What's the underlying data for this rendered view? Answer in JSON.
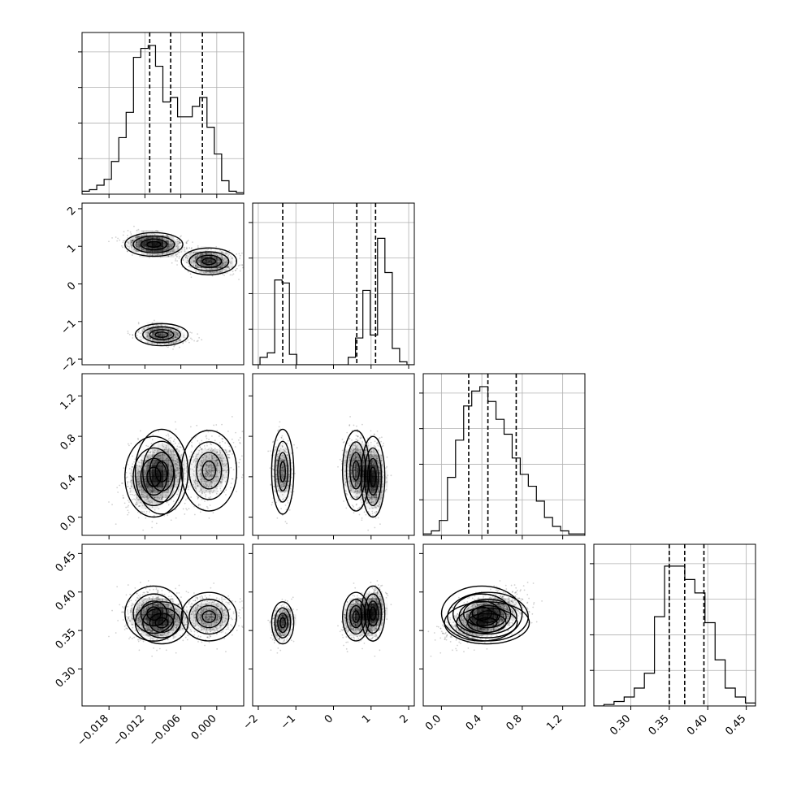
{
  "chart_data": {
    "type": "corner",
    "title": "",
    "grid": true,
    "parameters": [
      {
        "range": [
          -0.0225,
          0.0045
        ],
        "ticks": [
          -0.018,
          -0.012,
          -0.006,
          0.0
        ],
        "ticklabels": [
          "−0.018",
          "−0.012",
          "−0.006",
          "0.000"
        ],
        "quantiles": [
          -0.0112,
          -0.0077,
          -0.0024
        ],
        "hist": [
          0.02,
          0.03,
          0.06,
          0.1,
          0.22,
          0.38,
          0.55,
          0.92,
          0.98,
          1.0,
          0.86,
          0.62,
          0.65,
          0.52,
          0.52,
          0.59,
          0.65,
          0.45,
          0.27,
          0.09,
          0.02,
          0.01
        ]
      },
      {
        "range": [
          -2.15,
          2.15
        ],
        "ticks": [
          -2,
          -1,
          0,
          1,
          2
        ],
        "ticklabels": [
          "−2",
          "−1",
          "0",
          "1",
          "2"
        ],
        "quantiles": [
          -1.35,
          0.62,
          1.12
        ],
        "hist": [
          0.0,
          0.05,
          0.08,
          0.57,
          0.55,
          0.07,
          0.0,
          0.0,
          0.0,
          0.0,
          0.0,
          0.0,
          0.0,
          0.05,
          0.18,
          0.5,
          0.2,
          0.85,
          0.62,
          0.11,
          0.02,
          0.0
        ]
      },
      {
        "range": [
          -0.18,
          1.42
        ],
        "ticks": [
          0.0,
          0.4,
          0.8,
          1.2
        ],
        "ticklabels": [
          "0.0",
          "0.4",
          "0.8",
          "1.2"
        ],
        "quantiles": [
          0.27,
          0.46,
          0.74
        ],
        "hist": [
          0.01,
          0.03,
          0.1,
          0.39,
          0.64,
          0.87,
          0.97,
          1.0,
          0.9,
          0.78,
          0.68,
          0.52,
          0.41,
          0.33,
          0.23,
          0.12,
          0.06,
          0.03,
          0.01,
          0.01
        ]
      },
      {
        "range": [
          0.252,
          0.462
        ],
        "ticks": [
          0.3,
          0.35,
          0.4,
          0.45
        ],
        "ticklabels": [
          "0.30",
          "0.35",
          "0.40",
          "0.45"
        ],
        "quantiles": [
          0.35,
          0.37,
          0.395
        ],
        "hist": [
          0.0,
          0.01,
          0.03,
          0.06,
          0.12,
          0.22,
          0.6,
          0.94,
          0.94,
          0.85,
          0.76,
          0.56,
          0.31,
          0.12,
          0.06,
          0.02
        ]
      }
    ],
    "clusters": [
      {
        "weight": 0.42,
        "mean": [
          -0.0105,
          1.05,
          0.4,
          0.372
        ],
        "sd": [
          0.0023,
          0.15,
          0.19,
          0.017
        ]
      },
      {
        "weight": 0.25,
        "mean": [
          -0.0092,
          -1.35,
          0.45,
          0.36
        ],
        "sd": [
          0.0021,
          0.14,
          0.2,
          0.013
        ]
      },
      {
        "weight": 0.33,
        "mean": [
          -0.0013,
          0.6,
          0.46,
          0.368
        ],
        "sd": [
          0.0022,
          0.17,
          0.19,
          0.015
        ]
      }
    ]
  }
}
